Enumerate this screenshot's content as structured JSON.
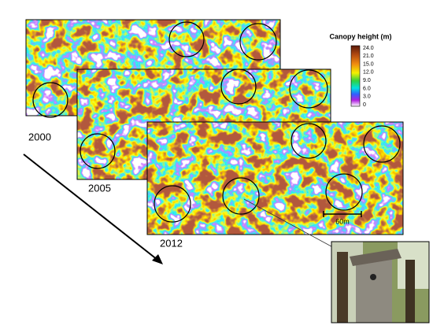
{
  "legend": {
    "title": "Canopy height (m)",
    "ticks": [
      "24.0",
      "21.0",
      "15.0",
      "12.0",
      "9.0",
      "6.0",
      "3.0",
      "0"
    ]
  },
  "maps": [
    {
      "year": "2000"
    },
    {
      "year": "2005"
    },
    {
      "year": "2012"
    }
  ],
  "scale_bar": "60m"
}
